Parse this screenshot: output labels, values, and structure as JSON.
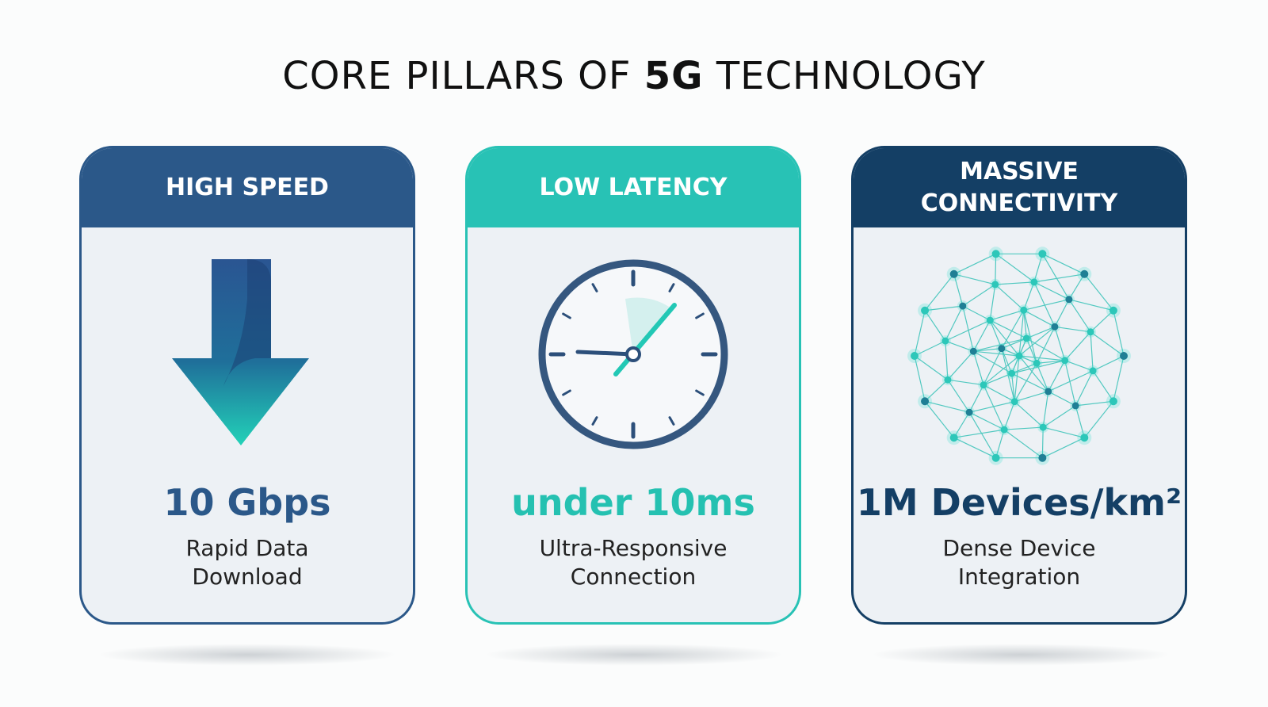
{
  "title": {
    "prefix": "CORE PILLARS OF",
    "bold": "5G",
    "suffix": "TECHNOLOGY"
  },
  "cards": [
    {
      "header": "HIGH SPEED",
      "metric": "10 Gbps",
      "description": [
        "Rapid Data",
        "Download"
      ]
    },
    {
      "header": "LOW LATENCY",
      "metric": "under 10ms",
      "description": [
        "Ultra-Responsive",
        "Connection"
      ]
    },
    {
      "header": "MASSIVE CONNECTIVITY",
      "metric": "1M Devices/km²",
      "description": [
        "Dense Device",
        "Integration"
      ]
    }
  ]
}
